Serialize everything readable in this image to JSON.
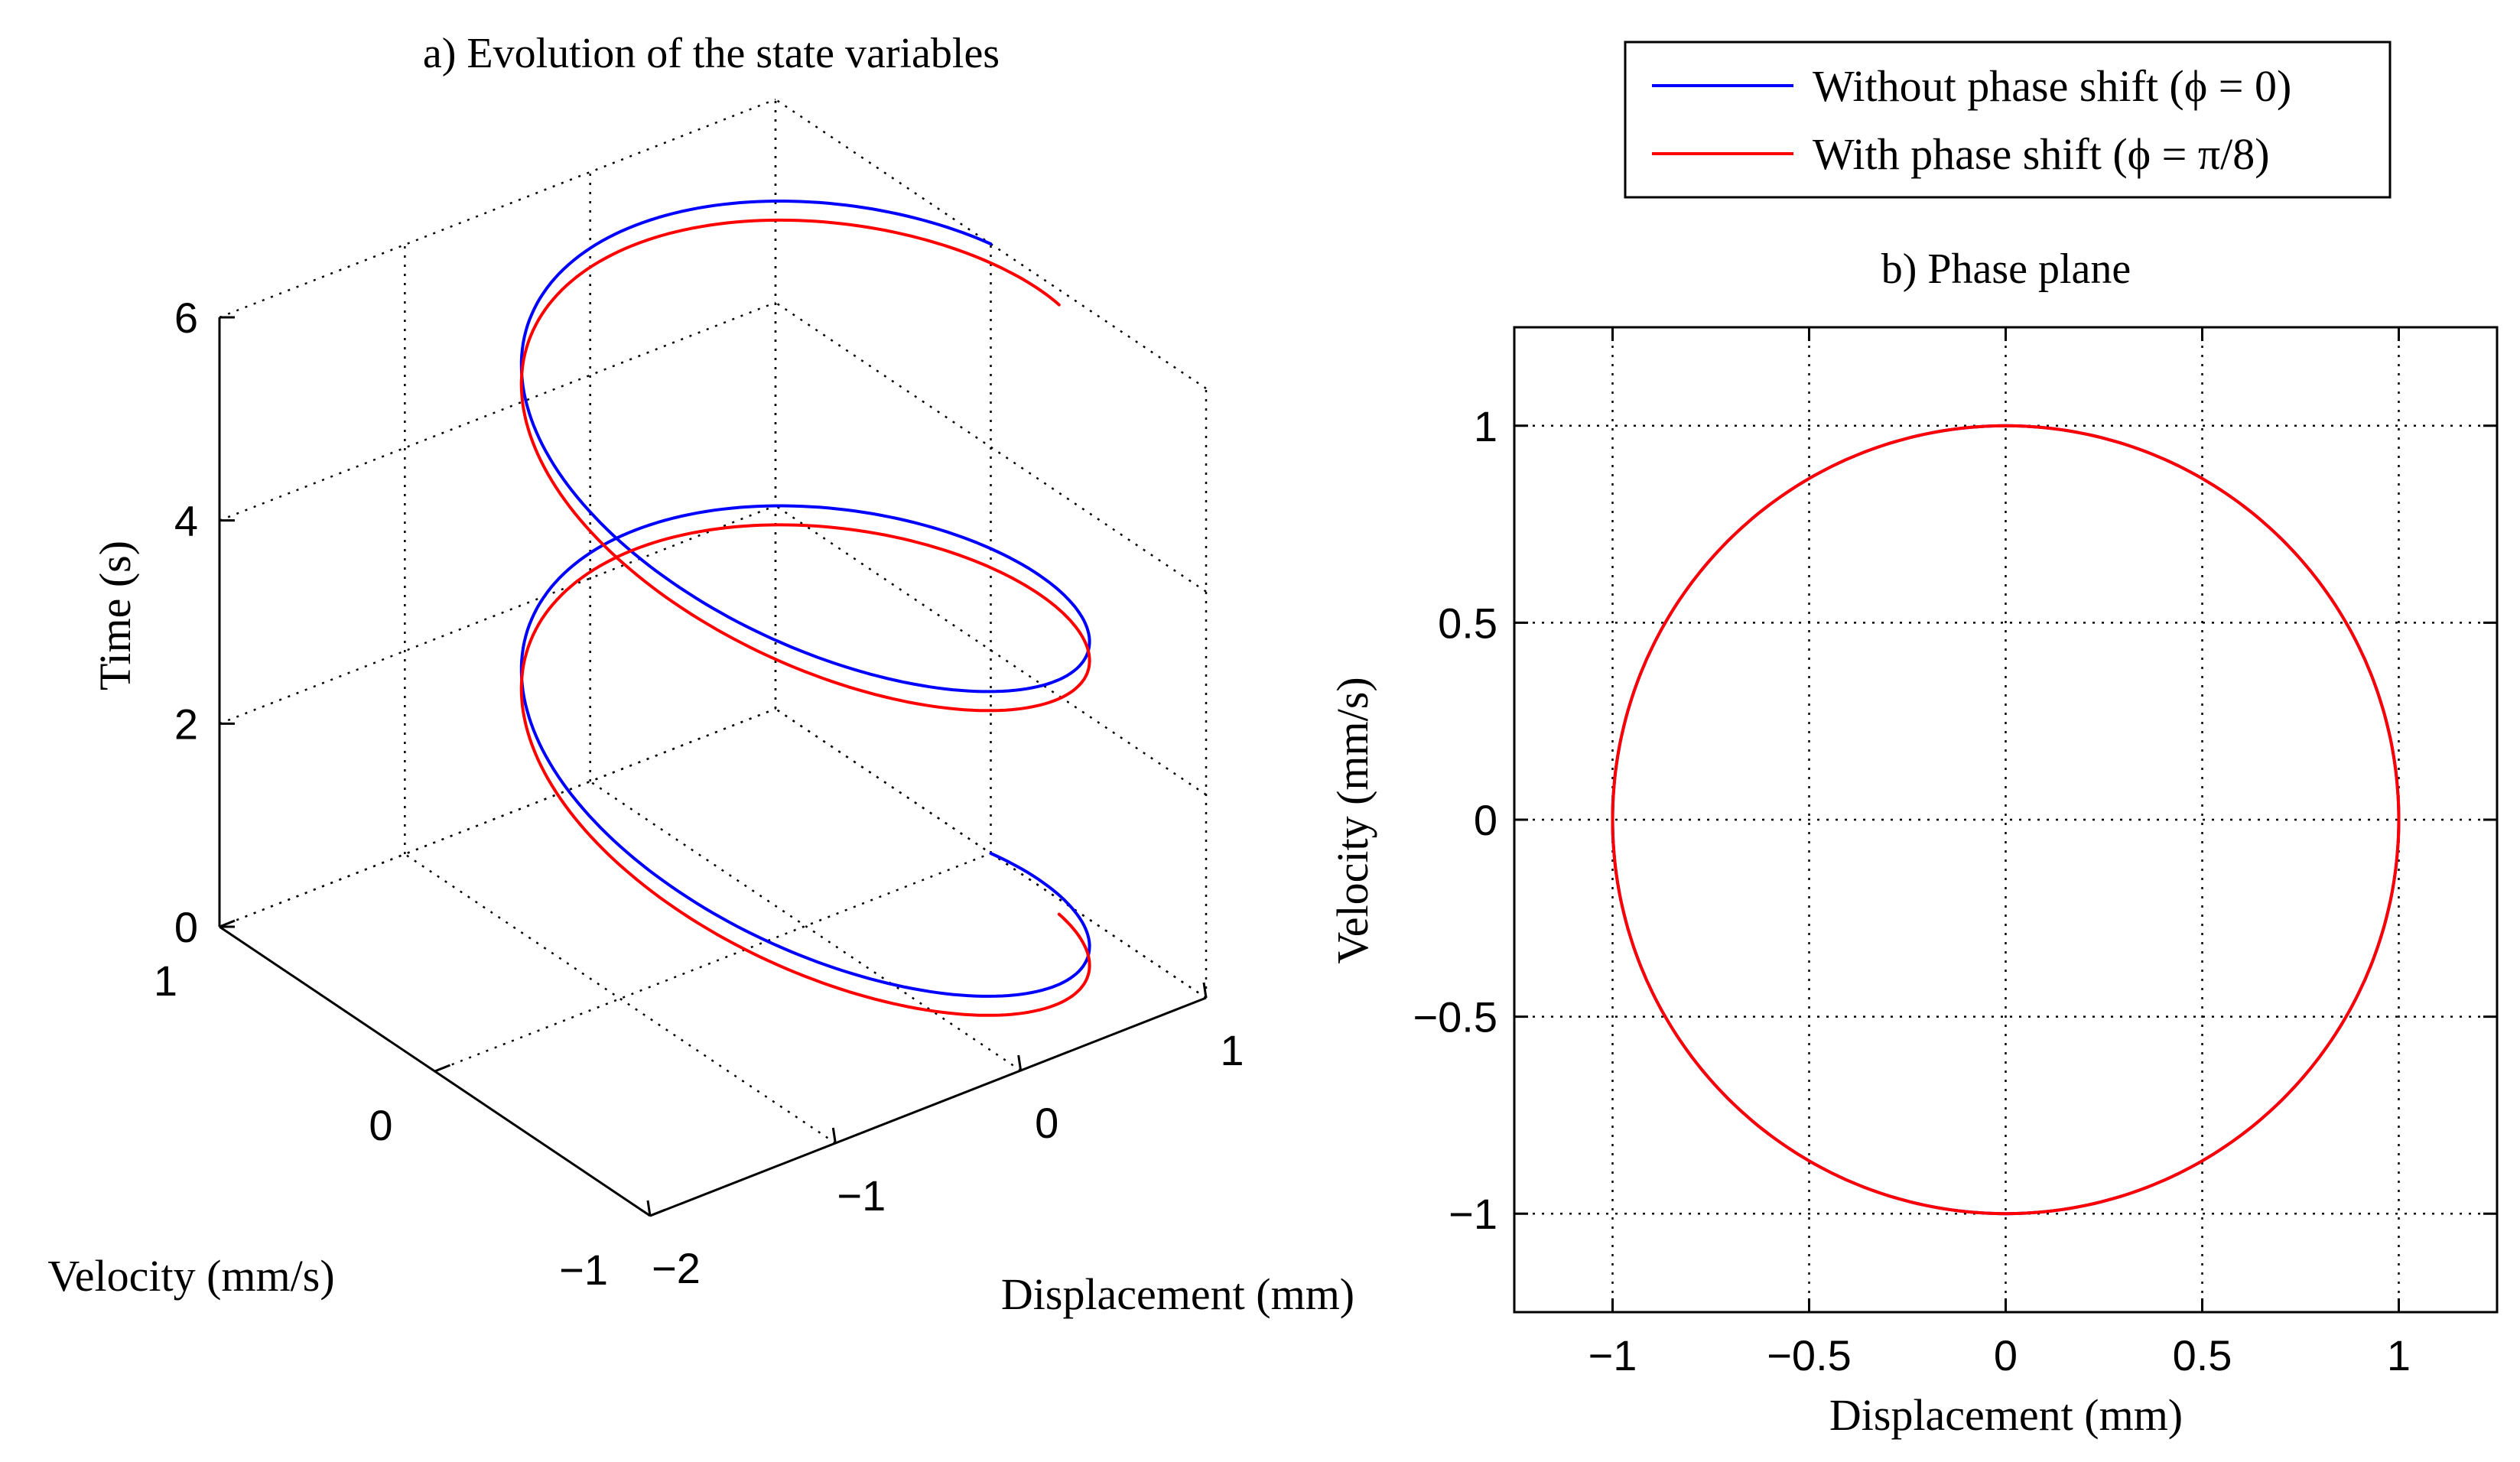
{
  "colors": {
    "without": "#0000ff",
    "with": "#ff0000",
    "axes": "#000000"
  },
  "legend": {
    "entries": [
      {
        "label": "Without phase shift (ϕ = 0)",
        "color": "#0000ff"
      },
      {
        "label": "With phase shift (ϕ = π/8)",
        "color": "#ff0000"
      }
    ],
    "placement": "top-right"
  },
  "chart_data": [
    {
      "type": "line3d",
      "title": "a) Evolution of the state variables",
      "xlabel": "Displacement (mm)",
      "ylabel": "Velocity (mm/s)",
      "zlabel": "Time (s)",
      "xlim": [
        -2,
        1
      ],
      "ylim": [
        -1,
        1
      ],
      "zlim": [
        0,
        6
      ],
      "xticks": [
        "−2",
        "−1",
        "0",
        "1"
      ],
      "yticks": [
        "−1",
        "0",
        "1"
      ],
      "zticks": [
        "0",
        "2",
        "4",
        "6"
      ],
      "grid": true,
      "series": [
        {
          "name": "Without phase shift (ϕ = 0)",
          "phase": 0,
          "t_range": [
            0,
            6
          ],
          "x": "cos(ωt + ϕ)",
          "y": "−sin(ωt + ϕ)",
          "omega": 2.0944
        },
        {
          "name": "With phase shift (ϕ = π/8)",
          "phase": 0.3927,
          "t_range": [
            0,
            6
          ],
          "x": "cos(ωt + ϕ)",
          "y": "−sin(ωt + ϕ)",
          "omega": 2.0944
        }
      ]
    },
    {
      "type": "line",
      "title": "b) Phase plane",
      "xlabel": "Displacement (mm)",
      "ylabel": "Velocity (mm/s)",
      "xlim": [
        -1.25,
        1.25
      ],
      "ylim": [
        -1.25,
        1.25
      ],
      "xticks": [
        "−1",
        "−0.5",
        "0",
        "0.5",
        "1"
      ],
      "yticks": [
        "−1",
        "−0.5",
        "0",
        "0.5",
        "1"
      ],
      "grid": true,
      "series": [
        {
          "name": "Without phase shift (ϕ = 0)",
          "shape": "unit circle, x² + y² = 1"
        },
        {
          "name": "With phase shift (ϕ = π/8)",
          "shape": "unit circle, x² + y² = 1"
        }
      ]
    }
  ]
}
